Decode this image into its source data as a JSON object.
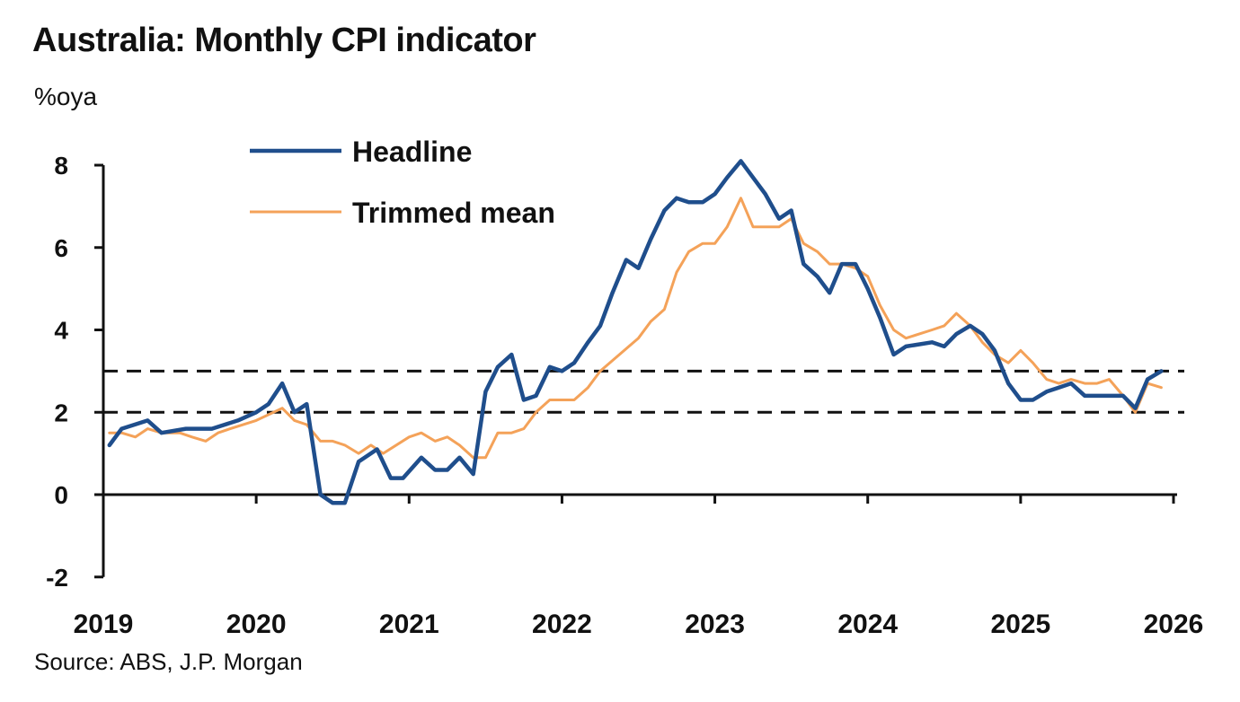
{
  "chart_data": {
    "type": "line",
    "title": "Australia: Monthly CPI indicator",
    "ylabel": "%oya",
    "source": "Source: ABS, J.P. Morgan",
    "ylim": [
      -2,
      8
    ],
    "yticks": [
      -2,
      0,
      2,
      4,
      6,
      8
    ],
    "xlim": [
      2019,
      2026
    ],
    "xticks": [
      2019,
      2020,
      2021,
      2022,
      2023,
      2024,
      2025,
      2026
    ],
    "reference_lines": [
      3,
      2
    ],
    "legend_position": "top-left",
    "series": [
      {
        "name": "Headline",
        "color": "#1f4e8c",
        "points": [
          [
            2019.04,
            1.2
          ],
          [
            2019.12,
            1.6
          ],
          [
            2019.29,
            1.8
          ],
          [
            2019.38,
            1.5
          ],
          [
            2019.54,
            1.6
          ],
          [
            2019.71,
            1.6
          ],
          [
            2019.88,
            1.8
          ],
          [
            2020.0,
            2.0
          ],
          [
            2020.08,
            2.2
          ],
          [
            2020.17,
            2.7
          ],
          [
            2020.25,
            2.0
          ],
          [
            2020.33,
            2.2
          ],
          [
            2020.42,
            0.0
          ],
          [
            2020.5,
            -0.2
          ],
          [
            2020.58,
            -0.2
          ],
          [
            2020.67,
            0.8
          ],
          [
            2020.79,
            1.1
          ],
          [
            2020.88,
            0.4
          ],
          [
            2020.96,
            0.4
          ],
          [
            2021.08,
            0.9
          ],
          [
            2021.17,
            0.6
          ],
          [
            2021.25,
            0.6
          ],
          [
            2021.33,
            0.9
          ],
          [
            2021.42,
            0.5
          ],
          [
            2021.5,
            2.5
          ],
          [
            2021.58,
            3.1
          ],
          [
            2021.67,
            3.4
          ],
          [
            2021.75,
            2.3
          ],
          [
            2021.83,
            2.4
          ],
          [
            2021.92,
            3.1
          ],
          [
            2022.0,
            3.0
          ],
          [
            2022.08,
            3.2
          ],
          [
            2022.17,
            3.7
          ],
          [
            2022.25,
            4.1
          ],
          [
            2022.33,
            4.9
          ],
          [
            2022.42,
            5.7
          ],
          [
            2022.5,
            5.5
          ],
          [
            2022.58,
            6.2
          ],
          [
            2022.67,
            6.9
          ],
          [
            2022.75,
            7.2
          ],
          [
            2022.83,
            7.1
          ],
          [
            2022.92,
            7.1
          ],
          [
            2023.0,
            7.3
          ],
          [
            2023.08,
            7.7
          ],
          [
            2023.17,
            8.1
          ],
          [
            2023.25,
            7.7
          ],
          [
            2023.33,
            7.3
          ],
          [
            2023.42,
            6.7
          ],
          [
            2023.5,
            6.9
          ],
          [
            2023.58,
            5.6
          ],
          [
            2023.67,
            5.3
          ],
          [
            2023.75,
            4.9
          ],
          [
            2023.83,
            5.6
          ],
          [
            2023.92,
            5.6
          ],
          [
            2024.0,
            5.0
          ],
          [
            2024.08,
            4.3
          ],
          [
            2024.17,
            3.4
          ],
          [
            2024.25,
            3.6
          ],
          [
            2024.42,
            3.7
          ],
          [
            2024.5,
            3.6
          ],
          [
            2024.58,
            3.9
          ],
          [
            2024.67,
            4.1
          ],
          [
            2024.75,
            3.9
          ],
          [
            2024.83,
            3.5
          ],
          [
            2024.92,
            2.7
          ],
          [
            2025.0,
            2.3
          ],
          [
            2025.08,
            2.3
          ],
          [
            2025.17,
            2.5
          ],
          [
            2025.25,
            2.6
          ],
          [
            2025.33,
            2.7
          ],
          [
            2025.42,
            2.4
          ],
          [
            2025.5,
            2.4
          ],
          [
            2025.58,
            2.4
          ],
          [
            2025.67,
            2.4
          ],
          [
            2025.75,
            2.1
          ],
          [
            2025.83,
            2.8
          ],
          [
            2025.92,
            3.0
          ]
        ]
      },
      {
        "name": "Trimmed mean",
        "color": "#f4a259",
        "points": [
          [
            2019.04,
            1.5
          ],
          [
            2019.12,
            1.5
          ],
          [
            2019.21,
            1.4
          ],
          [
            2019.29,
            1.6
          ],
          [
            2019.38,
            1.5
          ],
          [
            2019.5,
            1.5
          ],
          [
            2019.58,
            1.4
          ],
          [
            2019.67,
            1.3
          ],
          [
            2019.75,
            1.5
          ],
          [
            2019.83,
            1.6
          ],
          [
            2020.0,
            1.8
          ],
          [
            2020.17,
            2.1
          ],
          [
            2020.25,
            1.8
          ],
          [
            2020.33,
            1.7
          ],
          [
            2020.42,
            1.3
          ],
          [
            2020.5,
            1.3
          ],
          [
            2020.58,
            1.2
          ],
          [
            2020.67,
            1.0
          ],
          [
            2020.75,
            1.2
          ],
          [
            2020.83,
            1.0
          ],
          [
            2021.0,
            1.4
          ],
          [
            2021.08,
            1.5
          ],
          [
            2021.17,
            1.3
          ],
          [
            2021.25,
            1.4
          ],
          [
            2021.33,
            1.2
          ],
          [
            2021.42,
            0.9
          ],
          [
            2021.5,
            0.9
          ],
          [
            2021.58,
            1.5
          ],
          [
            2021.67,
            1.5
          ],
          [
            2021.75,
            1.6
          ],
          [
            2021.83,
            2.0
          ],
          [
            2021.92,
            2.3
          ],
          [
            2022.08,
            2.3
          ],
          [
            2022.17,
            2.6
          ],
          [
            2022.25,
            3.0
          ],
          [
            2022.5,
            3.8
          ],
          [
            2022.58,
            4.2
          ],
          [
            2022.67,
            4.5
          ],
          [
            2022.75,
            5.4
          ],
          [
            2022.83,
            5.9
          ],
          [
            2022.92,
            6.1
          ],
          [
            2023.0,
            6.1
          ],
          [
            2023.08,
            6.5
          ],
          [
            2023.17,
            7.2
          ],
          [
            2023.25,
            6.5
          ],
          [
            2023.42,
            6.5
          ],
          [
            2023.5,
            6.7
          ],
          [
            2023.58,
            6.1
          ],
          [
            2023.67,
            5.9
          ],
          [
            2023.75,
            5.6
          ],
          [
            2023.83,
            5.6
          ],
          [
            2023.92,
            5.5
          ],
          [
            2024.0,
            5.3
          ],
          [
            2024.08,
            4.6
          ],
          [
            2024.17,
            4.0
          ],
          [
            2024.25,
            3.8
          ],
          [
            2024.42,
            4.0
          ],
          [
            2024.5,
            4.1
          ],
          [
            2024.58,
            4.4
          ],
          [
            2024.67,
            4.1
          ],
          [
            2024.75,
            3.7
          ],
          [
            2024.83,
            3.4
          ],
          [
            2024.92,
            3.2
          ],
          [
            2025.0,
            3.5
          ],
          [
            2025.08,
            3.2
          ],
          [
            2025.17,
            2.8
          ],
          [
            2025.25,
            2.7
          ],
          [
            2025.33,
            2.8
          ],
          [
            2025.42,
            2.7
          ],
          [
            2025.5,
            2.7
          ],
          [
            2025.58,
            2.8
          ],
          [
            2025.67,
            2.4
          ],
          [
            2025.75,
            2.0
          ],
          [
            2025.83,
            2.7
          ],
          [
            2025.92,
            2.6
          ]
        ]
      }
    ]
  }
}
